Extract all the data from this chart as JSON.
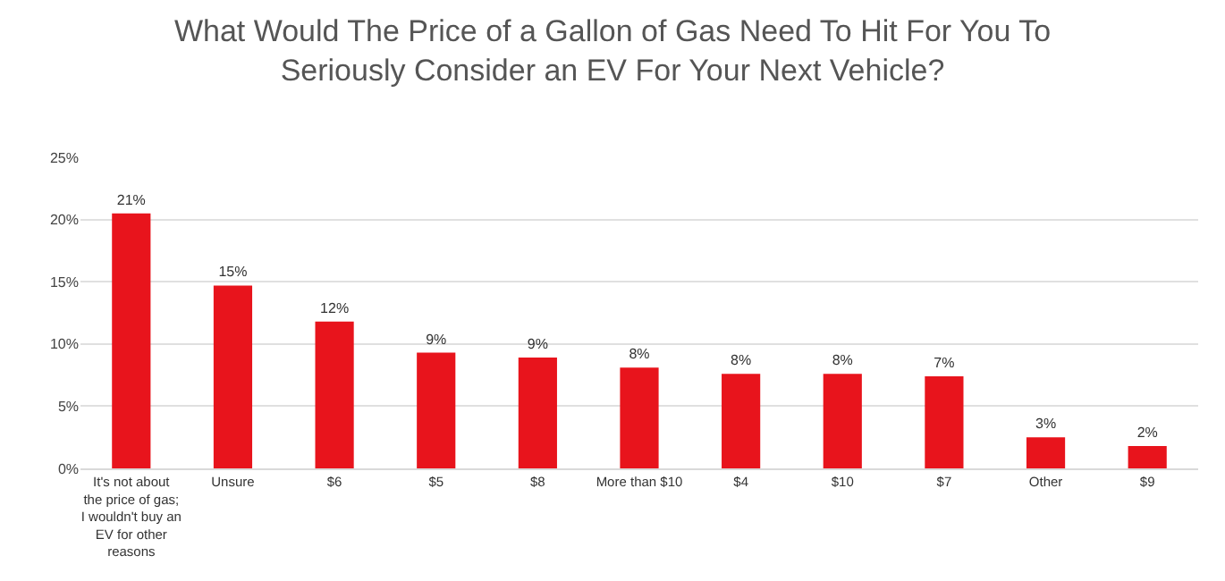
{
  "chart_data": {
    "type": "bar",
    "title": "What Would The Price of a Gallon of Gas Need To Hit For You To Seriously Consider an EV For Your Next Vehicle?",
    "categories": [
      "It's not about the price of gas; I wouldn't buy an EV for other reasons",
      "Unsure",
      "$6",
      "$5",
      "$8",
      "More than $10",
      "$4",
      "$10",
      "$7",
      "Other",
      "$9"
    ],
    "values": [
      20.5,
      14.7,
      11.8,
      9.3,
      8.9,
      8.1,
      7.6,
      7.6,
      7.4,
      2.5,
      1.8
    ],
    "value_labels": [
      "21%",
      "15%",
      "12%",
      "9%",
      "9%",
      "8%",
      "8%",
      "8%",
      "7%",
      "3%",
      "2%"
    ],
    "color": "#e8141c",
    "ylim": [
      0,
      25
    ],
    "yticks": [
      {
        "value": 0,
        "label": "0%"
      },
      {
        "value": 5,
        "label": "5%"
      },
      {
        "value": 10,
        "label": "10%"
      },
      {
        "value": 15,
        "label": "15%"
      },
      {
        "value": 20,
        "label": "20%"
      },
      {
        "value": 25,
        "label": "25%"
      }
    ],
    "grid": "y"
  }
}
